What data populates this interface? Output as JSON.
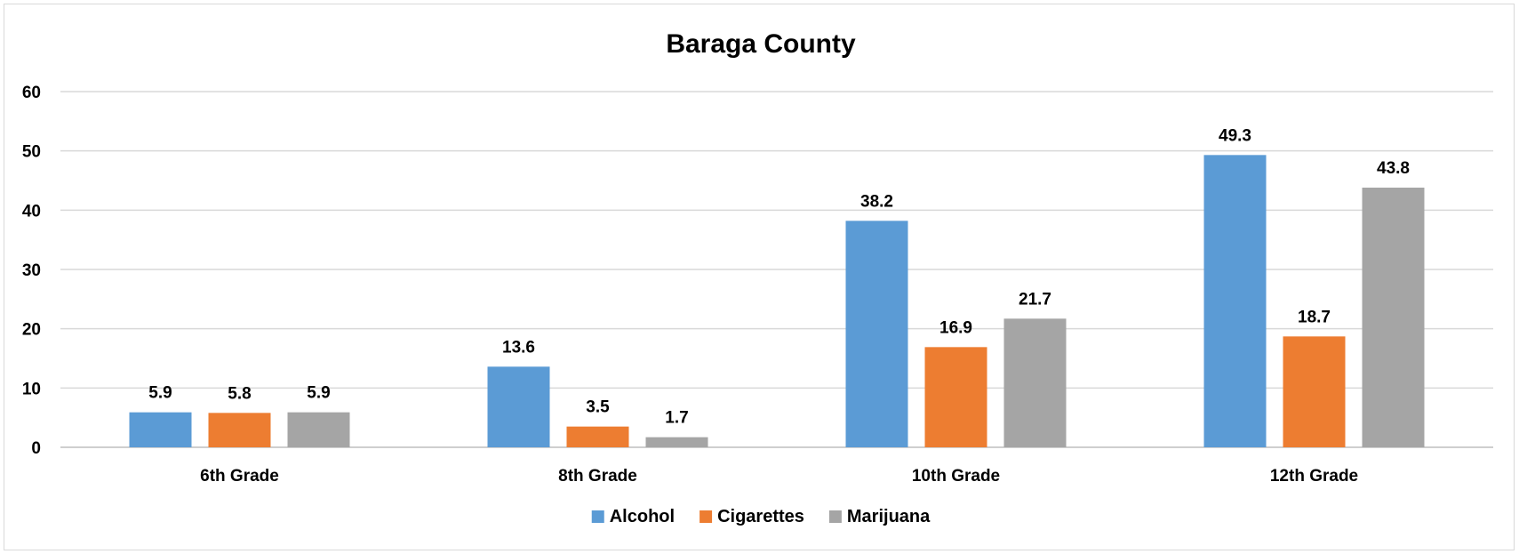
{
  "chart_data": {
    "type": "bar",
    "title": "Baraga County",
    "xlabel": "",
    "ylabel": "",
    "ylim": [
      0,
      60
    ],
    "yticks": [
      0,
      10,
      20,
      30,
      40,
      50,
      60
    ],
    "grid": true,
    "legend_position": "bottom",
    "categories": [
      "6th Grade",
      "8th Grade",
      "10th Grade",
      "12th Grade"
    ],
    "series": [
      {
        "name": "Alcohol",
        "color": "#5b9bd5",
        "values": [
          5.9,
          13.6,
          38.2,
          49.3
        ]
      },
      {
        "name": "Cigarettes",
        "color": "#ed7d31",
        "values": [
          5.8,
          3.5,
          16.9,
          18.7
        ]
      },
      {
        "name": "Marijuana",
        "color": "#a5a5a5",
        "values": [
          5.9,
          1.7,
          21.7,
          43.8
        ]
      }
    ]
  }
}
